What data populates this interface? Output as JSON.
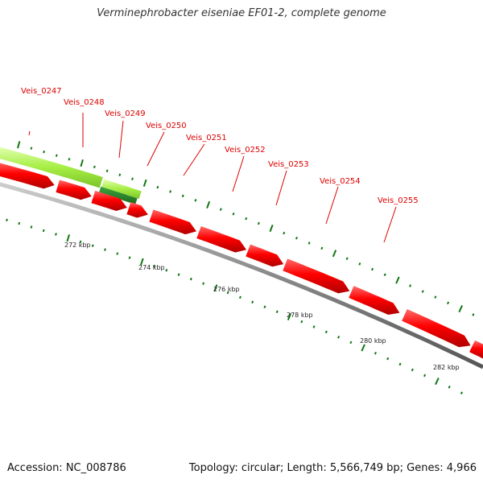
{
  "title": "Verminephrobacter eiseniae EF01-2, complete genome",
  "footer": {
    "accession": "Accession: NC_008786",
    "summary": "Topology: circular; Length: 5,566,749 bp; Genes: 4,966"
  },
  "genes": [
    {
      "label": "Veis_0247"
    },
    {
      "label": "Veis_0248"
    },
    {
      "label": "Veis_0249"
    },
    {
      "label": "Veis_0250"
    },
    {
      "label": "Veis_0251"
    },
    {
      "label": "Veis_0252"
    },
    {
      "label": "Veis_0253"
    },
    {
      "label": "Veis_0254"
    },
    {
      "label": "Veis_0255"
    }
  ],
  "scale_labels": [
    "272 kbp",
    "274 kbp",
    "276 kbp",
    "278 kbp",
    "280 kbp",
    "282 kbp"
  ],
  "colors": {
    "gene_red": "#ff0000",
    "gene_light_green": "#aaff44",
    "gene_dark_green": "#228822",
    "tick_green": "#117711",
    "backbone_gray": "#888888",
    "label_red": "#dd0000"
  }
}
